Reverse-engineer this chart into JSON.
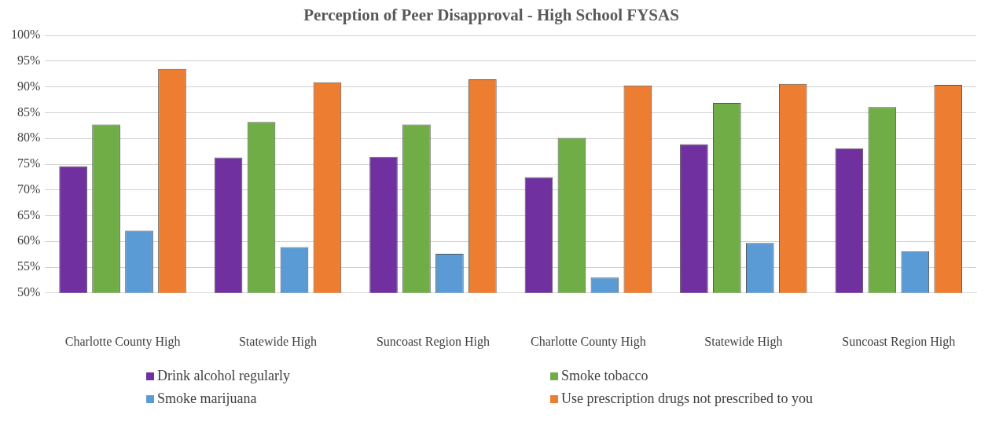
{
  "chart_data": {
    "type": "bar",
    "title": "Perception of Peer Disapproval - High School FYSAS",
    "categories": [
      "Charlotte County High",
      "Statewide High",
      "Suncoast Region High",
      "Charlotte County High",
      "Statewide High",
      "Suncoast Region High"
    ],
    "series": [
      {
        "name": "Drink alcohol regularly",
        "color": "#7030a0",
        "values": [
          74.6,
          76.3,
          76.4,
          72.5,
          78.9,
          78.1
        ]
      },
      {
        "name": "Smoke tobacco",
        "color": "#70ad47",
        "values": [
          82.7,
          83.2,
          82.7,
          80.1,
          86.9,
          86.1
        ]
      },
      {
        "name": "Smoke marijuana",
        "color": "#5b9bd5",
        "values": [
          62.1,
          58.9,
          57.6,
          53.0,
          59.7,
          58.1
        ]
      },
      {
        "name": "Use prescription drugs not prescribed to you",
        "color": "#ed7d31",
        "values": [
          93.5,
          90.9,
          91.5,
          90.3,
          90.6,
          90.4
        ]
      }
    ],
    "ylim": [
      50,
      100
    ],
    "yticks": [
      {
        "value": 50,
        "label": "50%"
      },
      {
        "value": 55,
        "label": "55%"
      },
      {
        "value": 60,
        "label": "60%"
      },
      {
        "value": 65,
        "label": "65%"
      },
      {
        "value": 70,
        "label": "70%"
      },
      {
        "value": 75,
        "label": "75%"
      },
      {
        "value": 80,
        "label": "80%"
      },
      {
        "value": 85,
        "label": "85%"
      },
      {
        "value": 90,
        "label": "90%"
      },
      {
        "value": 95,
        "label": "95%"
      },
      {
        "value": 100,
        "label": "100%"
      }
    ],
    "grid": "y",
    "legend": "bottom"
  }
}
